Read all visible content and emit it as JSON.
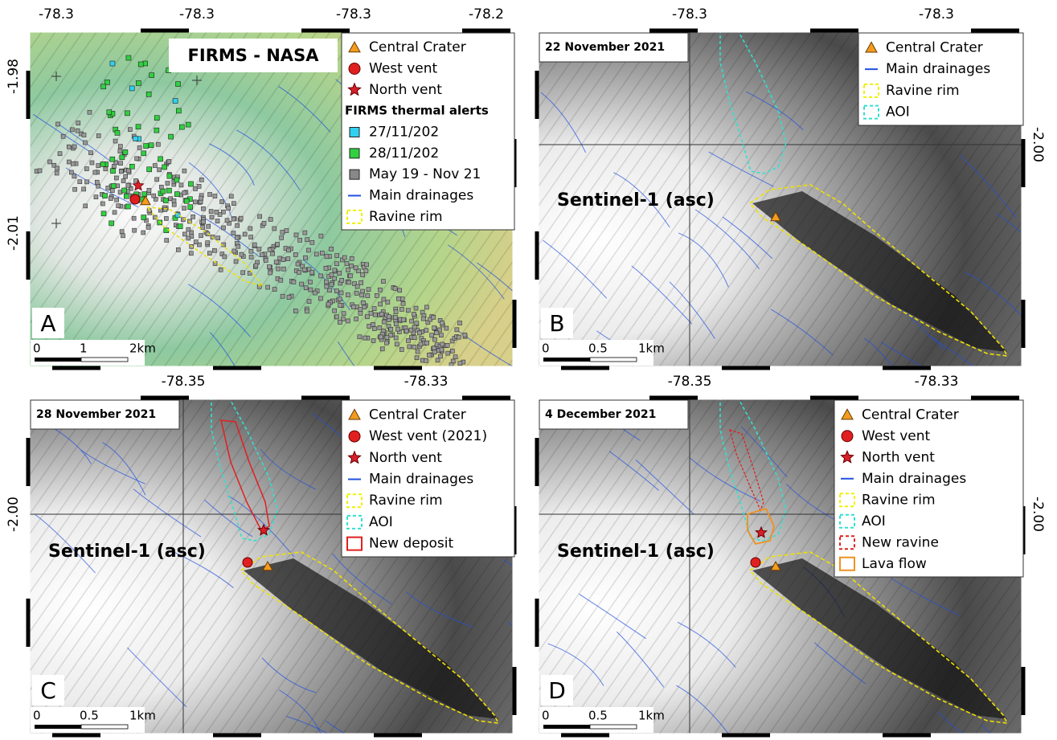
{
  "panels": [
    {
      "letter": "A",
      "title": "FIRMS - NASA",
      "top_ticks": [
        "-78.3",
        "-78.3",
        "-78.3",
        "-78.2"
      ],
      "side_ticks": [
        "-1.98",
        "-2.01"
      ],
      "scale_labels": [
        "0",
        "1",
        "2km"
      ],
      "legend": [
        {
          "label": "Central Crater",
          "marker": "triangle",
          "color": "#f39c1f"
        },
        {
          "label": "West vent",
          "marker": "circle",
          "color": "#e02020"
        },
        {
          "label": "North vent",
          "marker": "star",
          "color": "#d8202a"
        },
        {
          "label": "FIRMS thermal alerts",
          "marker": "none",
          "color": "#000000"
        },
        {
          "label": "27/11/202",
          "marker": "square",
          "color": "#30d0f0"
        },
        {
          "label": "28/11/202",
          "marker": "square",
          "color": "#30d040"
        },
        {
          "label": "May 19 - Nov 21",
          "marker": "square",
          "color": "#888888"
        },
        {
          "label": "Main drainages",
          "marker": "line",
          "color": "#2050e0"
        },
        {
          "label": "Ravine rim",
          "marker": "dashed-box",
          "color": "#f0f000"
        }
      ]
    },
    {
      "letter": "B",
      "date": "22 November 2021",
      "sensor": "Sentinel-1 (asc)",
      "top_ticks": [
        "-78.3",
        "-78.3"
      ],
      "side_ticks": [
        "-2.00"
      ],
      "scale_labels": [
        "0",
        "0.5",
        "1km"
      ],
      "legend": [
        {
          "label": "Central Crater",
          "marker": "triangle",
          "color": "#f39c1f"
        },
        {
          "label": "Main drainages",
          "marker": "line",
          "color": "#2050e0"
        },
        {
          "label": "Ravine rim",
          "marker": "dashed-box",
          "color": "#f0f000"
        },
        {
          "label": "AOI",
          "marker": "dashed-box",
          "color": "#30e0d0"
        }
      ]
    },
    {
      "letter": "C",
      "date": "28 November 2021",
      "sensor": "Sentinel-1 (asc)",
      "top_ticks": [
        "-78.35",
        "-78.33"
      ],
      "side_ticks": [
        "-2.00"
      ],
      "scale_labels": [
        "0",
        "0.5",
        "1km"
      ],
      "legend": [
        {
          "label": "Central Crater",
          "marker": "triangle",
          "color": "#f39c1f"
        },
        {
          "label": "West vent (2021)",
          "marker": "circle",
          "color": "#e02020"
        },
        {
          "label": "North vent",
          "marker": "star",
          "color": "#d8202a"
        },
        {
          "label": "Main drainages",
          "marker": "line",
          "color": "#2050e0"
        },
        {
          "label": "Ravine rim",
          "marker": "dashed-box",
          "color": "#f0f000"
        },
        {
          "label": "AOI",
          "marker": "dashed-box",
          "color": "#30e0d0"
        },
        {
          "label": "New deposit",
          "marker": "box",
          "color": "#e02020"
        }
      ]
    },
    {
      "letter": "D",
      "date": "4 December 2021",
      "sensor": "Sentinel-1 (asc)",
      "top_ticks": [
        "-78.35",
        "-78.33"
      ],
      "side_ticks": [
        "-2.00"
      ],
      "scale_labels": [
        "0",
        "0.5",
        "1km"
      ],
      "legend": [
        {
          "label": "Central Crater",
          "marker": "triangle",
          "color": "#f39c1f"
        },
        {
          "label": "West vent",
          "marker": "circle",
          "color": "#e02020"
        },
        {
          "label": "North vent",
          "marker": "star",
          "color": "#d8202a"
        },
        {
          "label": "Main drainages",
          "marker": "line",
          "color": "#2050e0"
        },
        {
          "label": "Ravine rim",
          "marker": "dashed-box",
          "color": "#f0f000"
        },
        {
          "label": "AOI",
          "marker": "dashed-box",
          "color": "#30e0d0"
        },
        {
          "label": "New ravine",
          "marker": "dashed-box",
          "color": "#e02020"
        },
        {
          "label": "Lava flow",
          "marker": "box",
          "color": "#f09020"
        }
      ]
    }
  ]
}
